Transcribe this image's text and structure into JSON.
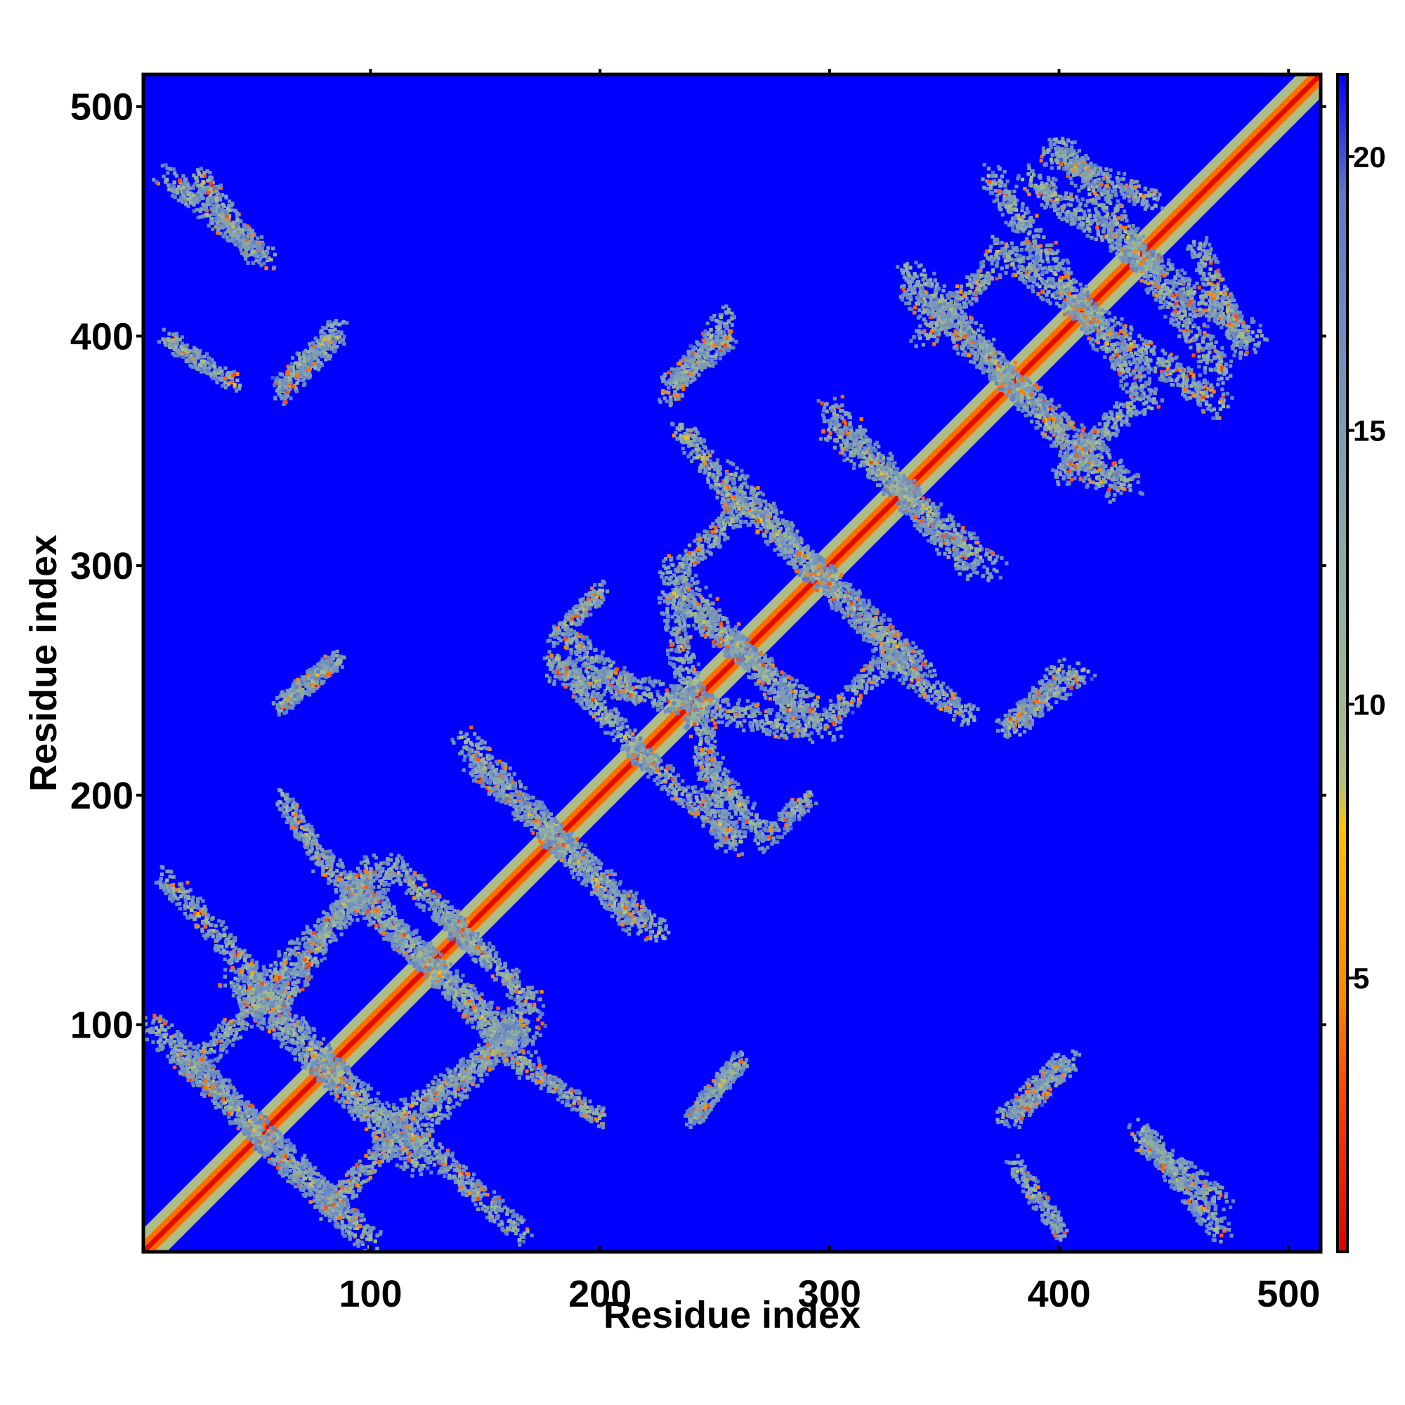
{
  "chart_data": {
    "type": "heatmap",
    "title": "",
    "xlabel": "Residue index",
    "ylabel": "Residue index",
    "xlim": [
      1,
      514
    ],
    "ylim": [
      1,
      514
    ],
    "x_ticks": [
      100,
      200,
      300,
      400,
      500
    ],
    "y_ticks": [
      100,
      200,
      300,
      400,
      500
    ],
    "colorbar": {
      "range": [
        0,
        21.5
      ],
      "ticks": [
        5,
        10,
        15,
        20
      ],
      "colors": [
        "#e00000",
        "#ff3a00",
        "#ff8800",
        "#ffc000",
        "#b0c080",
        "#90b0a0",
        "#7d9ab8",
        "#5a7ac8",
        "#0000ff"
      ],
      "stops": [
        0,
        0.12,
        0.22,
        0.36,
        0.4,
        0.55,
        0.7,
        0.9,
        1.0
      ]
    },
    "background_value": 21.5,
    "diagonal": {
      "width_residues": 6
    },
    "contact_bands": [
      {
        "x1": 5,
        "y1": 100,
        "x2": 90,
        "y2": 15,
        "w": 6
      },
      {
        "x1": 40,
        "y1": 120,
        "x2": 120,
        "y2": 45,
        "w": 7
      },
      {
        "x1": 20,
        "y1": 80,
        "x2": 50,
        "y2": 110,
        "w": 5
      },
      {
        "x1": 55,
        "y1": 120,
        "x2": 110,
        "y2": 170,
        "w": 6
      },
      {
        "x1": 80,
        "y1": 170,
        "x2": 165,
        "y2": 90,
        "w": 6
      },
      {
        "x1": 110,
        "y1": 60,
        "x2": 165,
        "y2": 10,
        "w": 5
      },
      {
        "x1": 130,
        "y1": 150,
        "x2": 170,
        "y2": 110,
        "w": 5
      },
      {
        "x1": 145,
        "y1": 215,
        "x2": 225,
        "y2": 140,
        "w": 6
      },
      {
        "x1": 180,
        "y1": 255,
        "x2": 285,
        "y2": 230,
        "w": 6
      },
      {
        "x1": 185,
        "y1": 270,
        "x2": 215,
        "y2": 245,
        "w": 5
      },
      {
        "x1": 215,
        "y1": 220,
        "x2": 260,
        "y2": 180,
        "w": 5
      },
      {
        "x1": 270,
        "y1": 180,
        "x2": 290,
        "y2": 200,
        "w": 4
      },
      {
        "x1": 230,
        "y1": 380,
        "x2": 255,
        "y2": 400,
        "w": 5
      },
      {
        "x1": 230,
        "y1": 300,
        "x2": 290,
        "y2": 230,
        "w": 6
      },
      {
        "x1": 235,
        "y1": 300,
        "x2": 260,
        "y2": 325,
        "w": 5
      },
      {
        "x1": 255,
        "y1": 340,
        "x2": 330,
        "y2": 260,
        "w": 6
      },
      {
        "x1": 300,
        "y1": 370,
        "x2": 360,
        "y2": 300,
        "w": 6
      },
      {
        "x1": 325,
        "y1": 260,
        "x2": 360,
        "y2": 235,
        "w": 5
      },
      {
        "x1": 335,
        "y1": 420,
        "x2": 430,
        "y2": 335,
        "w": 6
      },
      {
        "x1": 340,
        "y1": 400,
        "x2": 370,
        "y2": 430,
        "w": 5
      },
      {
        "x1": 375,
        "y1": 230,
        "x2": 410,
        "y2": 255,
        "w": 5
      },
      {
        "x1": 370,
        "y1": 440,
        "x2": 470,
        "y2": 370,
        "w": 6
      },
      {
        "x1": 385,
        "y1": 470,
        "x2": 485,
        "y2": 400,
        "w": 6
      },
      {
        "x1": 395,
        "y1": 480,
        "x2": 440,
        "y2": 460,
        "w": 5
      },
      {
        "x1": 10,
        "y1": 470,
        "x2": 55,
        "y2": 435,
        "w": 5
      },
      {
        "x1": 10,
        "y1": 400,
        "x2": 40,
        "y2": 380,
        "w": 4
      },
      {
        "x1": 60,
        "y1": 375,
        "x2": 85,
        "y2": 400,
        "w": 4
      },
      {
        "x1": 380,
        "y1": 60,
        "x2": 405,
        "y2": 85,
        "w": 4
      },
      {
        "x1": 435,
        "y1": 50,
        "x2": 470,
        "y2": 25,
        "w": 5
      },
      {
        "x1": 240,
        "y1": 60,
        "x2": 260,
        "y2": 85,
        "w": 4
      },
      {
        "x1": 60,
        "y1": 240,
        "x2": 85,
        "y2": 260,
        "w": 4
      },
      {
        "x1": 110,
        "y1": 60,
        "x2": 170,
        "y2": 100,
        "w": 5
      },
      {
        "x1": 170,
        "y1": 80,
        "x2": 200,
        "y2": 60,
        "w": 4
      }
    ]
  }
}
